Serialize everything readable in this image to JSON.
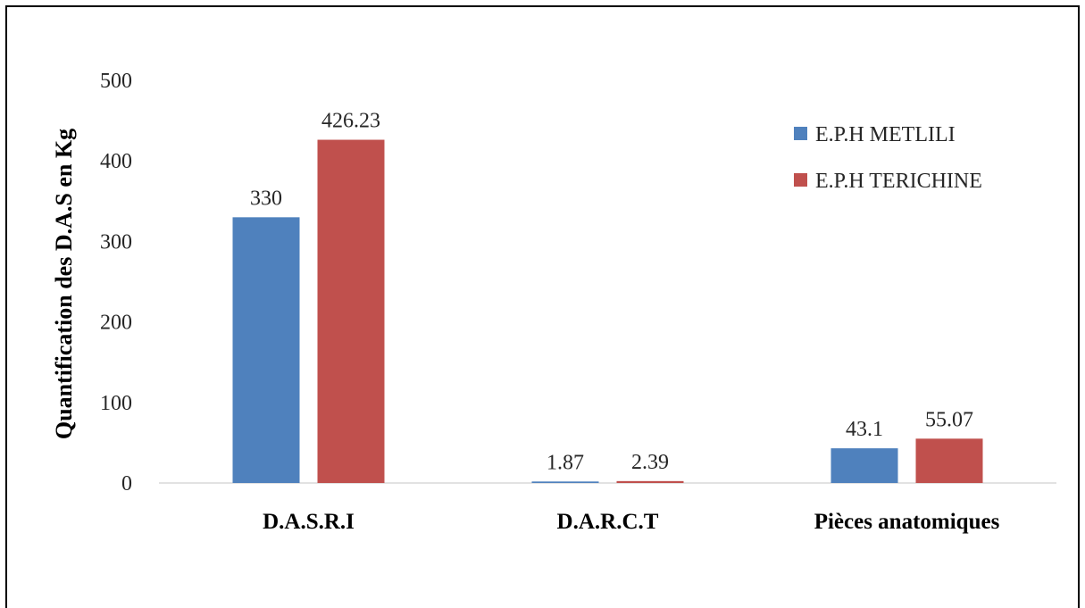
{
  "chart_data": {
    "type": "bar",
    "title": "",
    "xlabel": "",
    "ylabel": "Quantification des D.A.S en Kg",
    "categories": [
      "D.A.S.R.I",
      "D.A.R.C.T",
      "Pièces anatomiques"
    ],
    "series": [
      {
        "name": "E.P.H METLILI",
        "values": [
          330,
          1.87,
          43.1
        ],
        "labels": [
          "330",
          "1.87",
          "43.1"
        ],
        "color": "#4F81BD"
      },
      {
        "name": "E.P.H TERICHINE",
        "values": [
          426.23,
          2.39,
          55.07
        ],
        "labels": [
          "426.23",
          "2.39",
          "55.07"
        ],
        "color": "#C0504D"
      }
    ],
    "ylim": [
      0,
      500
    ],
    "yticks": [
      "0",
      "100",
      "200",
      "300",
      "400",
      "500"
    ],
    "grid": false,
    "legend_position": "top-right"
  }
}
